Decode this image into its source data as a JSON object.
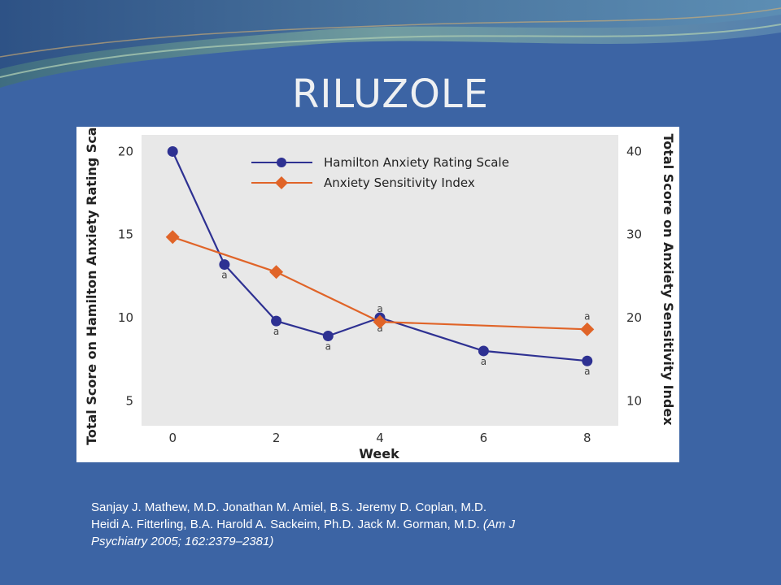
{
  "slide": {
    "title": "RILUZOLE",
    "citation": {
      "line1": "Sanjay J. Mathew, M.D. Jonathan M. Amiel, B.S.  Jeremy D. Coplan, M.D.",
      "line2": "Heidi A. Fitterling, B.A. Harold A. Sackeim, Ph.D. Jack M. Gorman, M.D. ",
      "ref_line2": "(Am J",
      "ref_line3": "Psychiatry 2005; 162:2379–2381)"
    },
    "colors": {
      "background": "#3c64a4",
      "hamilton_series": "#2e3192",
      "asi_series": "#e06428",
      "plot_area": "#e8e8e8"
    }
  },
  "chart_data": {
    "type": "line",
    "xlabel": "Week",
    "ylabel_left": "Total Score on Hamilton Anxiety Rating Scale",
    "ylabel_right": "Total Score on Anxiety Sensitivity Index",
    "xlim": [
      -0.6,
      8.6
    ],
    "ylim_left": [
      3.5,
      21
    ],
    "ylim_right": [
      7,
      42
    ],
    "x_ticks": [
      0,
      2,
      4,
      6,
      8
    ],
    "y_ticks_left": [
      5,
      10,
      15,
      20
    ],
    "y_ticks_right": [
      10,
      20,
      30,
      40
    ],
    "legend_position": "top-right",
    "grid": false,
    "significance_marker": "a",
    "series": [
      {
        "name": "Hamilton Anxiety Rating Scale",
        "axis": "left",
        "marker": "circle",
        "x": [
          0,
          1,
          2,
          3,
          4,
          6,
          8
        ],
        "y": [
          20,
          13.2,
          9.8,
          8.9,
          10.0,
          8.0,
          7.4
        ],
        "marks": [
          {
            "x": 1,
            "pos": "below"
          },
          {
            "x": 2,
            "pos": "below"
          },
          {
            "x": 3,
            "pos": "below"
          },
          {
            "x": 4,
            "pos": "below"
          },
          {
            "x": 6,
            "pos": "below"
          },
          {
            "x": 8,
            "pos": "below"
          }
        ]
      },
      {
        "name": "Anxiety Sensitivity Index",
        "axis": "right",
        "marker": "diamond",
        "x": [
          0,
          2,
          4,
          8
        ],
        "y": [
          29.7,
          25.5,
          19.5,
          18.6
        ],
        "marks": [
          {
            "x": 4,
            "pos": "above"
          },
          {
            "x": 8,
            "pos": "above"
          }
        ]
      }
    ]
  }
}
